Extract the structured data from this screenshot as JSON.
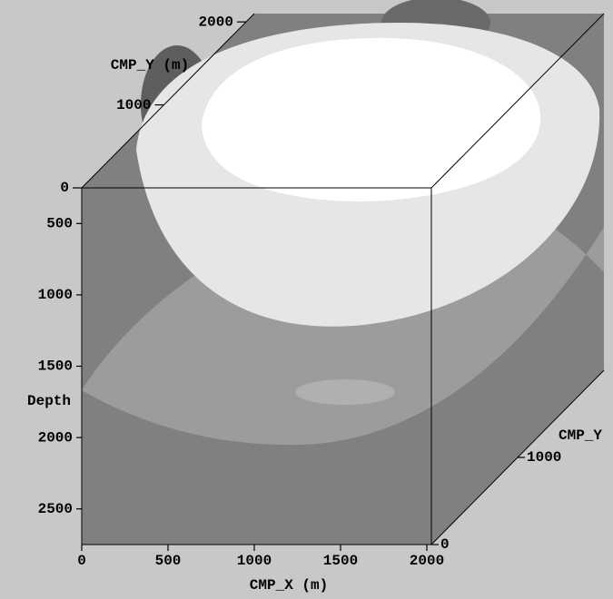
{
  "chart_data": {
    "type": "volume",
    "xlabel": "CMP_X (m)",
    "ylabel": "Depth",
    "zlabel": "CMP_Y (m)",
    "z2label": "CMP_Y",
    "xlim": [
      0,
      2000
    ],
    "xticks": [
      0,
      500,
      1000,
      1500,
      2000
    ],
    "ylim": [
      250,
      2750
    ],
    "yticks": [
      500,
      1000,
      1500,
      2000,
      2500
    ],
    "zlim": [
      0,
      2100
    ],
    "zticks": [
      0,
      1000,
      2000
    ],
    "z2lim": [
      0,
      2000
    ],
    "z2ticks": [
      0,
      1000
    ]
  }
}
